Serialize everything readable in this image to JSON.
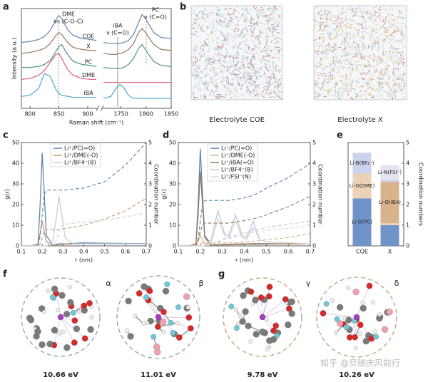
{
  "panel_labels": [
    "a",
    "b",
    "c",
    "d",
    "e",
    "f",
    "g"
  ],
  "chart_data": [
    {
      "type": "line",
      "ylabel": "Intensity (a.u.)",
      "xlabel": "Raman shift (cm⁻¹)",
      "x": [
        785,
        800,
        815,
        825,
        835,
        845,
        850,
        855,
        865,
        875,
        890,
        905,
        915,
        1715,
        1730,
        1740,
        1748,
        1755,
        1765,
        1775,
        1785,
        1792,
        1800,
        1815,
        1830,
        1850
      ],
      "xlim": [
        785,
        1850
      ],
      "xbreak": [
        915,
        1715
      ],
      "xticks": [
        800,
        850,
        900,
        1750,
        1800,
        1850
      ],
      "ylim": [
        0,
        10
      ],
      "series": [
        {
          "name": "COE",
          "color": "#6b8fb0",
          "values": [
            6.6,
            6.7,
            6.9,
            7.2,
            7.8,
            8.9,
            9.3,
            9.0,
            7.9,
            7.3,
            7.0,
            6.9,
            6.8,
            6.6,
            6.5,
            6.5,
            6.5,
            6.6,
            6.8,
            7.4,
            8.6,
            9.4,
            8.9,
            7.6,
            7.1,
            7.0
          ]
        },
        {
          "name": "X",
          "color": "#a08062",
          "values": [
            5.5,
            5.6,
            5.8,
            6.0,
            6.5,
            7.3,
            7.6,
            7.4,
            6.6,
            6.1,
            5.9,
            5.8,
            5.8,
            5.5,
            5.4,
            5.4,
            5.5,
            5.6,
            5.9,
            6.5,
            7.6,
            8.0,
            7.5,
            6.4,
            5.9,
            5.8
          ]
        },
        {
          "name": "PC",
          "color": "#5a9a8a",
          "values": [
            4.1,
            4.1,
            4.2,
            4.4,
            4.8,
            5.7,
            6.2,
            6.4,
            5.4,
            4.7,
            4.4,
            4.3,
            4.2,
            4.1,
            4.0,
            4.0,
            4.0,
            4.1,
            4.4,
            5.0,
            6.0,
            6.4,
            5.8,
            4.7,
            4.3,
            4.2
          ]
        },
        {
          "name": "DME",
          "color": "#e06a80",
          "values": [
            2.9,
            3.0,
            3.3,
            3.8,
            4.6,
            5.4,
            5.5,
            5.0,
            3.9,
            3.3,
            3.0,
            2.9,
            2.9,
            2.6,
            2.6,
            2.6,
            2.6,
            2.6,
            2.6,
            2.6,
            2.6,
            2.6,
            2.6,
            2.6,
            2.6,
            2.6
          ]
        },
        {
          "name": "iBA",
          "color": "#5ab0d0",
          "values": [
            1.2,
            1.3,
            2.0,
            3.5,
            3.2,
            1.9,
            1.5,
            1.3,
            1.2,
            1.1,
            1.1,
            1.1,
            1.1,
            1.0,
            1.2,
            2.0,
            2.4,
            2.1,
            1.3,
            1.0,
            1.0,
            1.0,
            1.0,
            1.0,
            1.0,
            1.0
          ]
        }
      ],
      "annotations": [
        "DME",
        "νs (C-O-C)",
        "iBA",
        "ν (C=O)",
        "PC",
        "ν (C=O)"
      ]
    },
    {
      "type": "line",
      "xlabel": "r (nm)",
      "ylabel": "g(r)",
      "y2label": "Coordination number",
      "x": [
        0.1,
        0.15,
        0.18,
        0.19,
        0.2,
        0.21,
        0.22,
        0.25,
        0.27,
        0.28,
        0.29,
        0.31,
        0.35,
        0.4,
        0.5,
        0.6,
        0.7
      ],
      "xlim": [
        0.1,
        0.7
      ],
      "xticks": [
        0.1,
        0.2,
        0.3,
        0.4,
        0.5,
        0.6,
        0.7
      ],
      "ylim": [
        0,
        50
      ],
      "yticks": [
        0,
        10,
        20,
        30,
        40,
        50
      ],
      "y2lim": [
        0,
        5
      ],
      "y2ticks": [
        0,
        1,
        2,
        3,
        4,
        5
      ],
      "series": [
        {
          "name": "Li⁺/PC(=O)",
          "color": "#5f86ad",
          "values": [
            0,
            0,
            1,
            20,
            45,
            25,
            5,
            0.5,
            0.8,
            1,
            1,
            1,
            1.2,
            1.5,
            1.3,
            1.2,
            1.1
          ]
        },
        {
          "name": "Li⁺/DME(-O)",
          "color": "#c79a6e",
          "values": [
            0,
            0,
            0.5,
            6,
            12,
            7,
            2,
            0.5,
            0.5,
            0.6,
            0.6,
            0.8,
            0.9,
            1,
            1,
            1,
            1
          ]
        },
        {
          "name": "Li⁺/BF4⁻(B)",
          "color": "#c6d0dc",
          "values": [
            0,
            0,
            0,
            0,
            0,
            0,
            0,
            2,
            15,
            24,
            18,
            4,
            1,
            1,
            1,
            1,
            1
          ]
        },
        {
          "color": "#5f86ad",
          "axis": "y2",
          "dash": true,
          "values": [
            0,
            0,
            0,
            0.5,
            1.5,
            2.5,
            2.7,
            2.7,
            2.7,
            2.7,
            2.7,
            2.7,
            2.75,
            2.8,
            3.1,
            3.9,
            5.0
          ]
        },
        {
          "color": "#c79a6e",
          "axis": "y2",
          "dash": true,
          "values": [
            0,
            0,
            0,
            0.1,
            0.4,
            0.7,
            0.8,
            0.8,
            0.8,
            0.8,
            0.8,
            0.85,
            0.9,
            1.0,
            1.3,
            1.7,
            2.3
          ]
        },
        {
          "color": "#c6d0dc",
          "axis": "y2",
          "dash": true,
          "values": [
            0,
            0,
            0,
            0,
            0,
            0,
            0,
            0.05,
            0.3,
            0.7,
            0.95,
            1.05,
            1.1,
            1.15,
            1.25,
            1.4,
            1.6
          ]
        }
      ]
    },
    {
      "type": "line",
      "xlabel": "r (nm)",
      "ylabel": "g(r)",
      "y2label": "Coordination number",
      "x": [
        0.1,
        0.15,
        0.18,
        0.19,
        0.2,
        0.21,
        0.22,
        0.25,
        0.28,
        0.31,
        0.33,
        0.36,
        0.39,
        0.41,
        0.44,
        0.47,
        0.5,
        0.6,
        0.7
      ],
      "xlim": [
        0.1,
        0.7
      ],
      "xticks": [
        0.1,
        0.2,
        0.3,
        0.4,
        0.5,
        0.6,
        0.7
      ],
      "ylim": [
        0,
        50
      ],
      "yticks": [
        0,
        10,
        20,
        30,
        40,
        50
      ],
      "y2lim": [
        0,
        5
      ],
      "y2ticks": [
        0,
        1,
        2,
        3,
        4,
        5
      ],
      "series": [
        {
          "name": "Li⁺/PC(=O)",
          "color": "#5f86ad",
          "values": [
            0,
            0,
            1,
            20,
            47,
            25,
            5,
            0.5,
            0.6,
            0.8,
            0.8,
            0.9,
            1,
            1,
            1.1,
            1.1,
            1.1,
            1,
            1
          ]
        },
        {
          "name": "Li⁺/DME(-O)",
          "color": "#d9b48c",
          "values": [
            0,
            0,
            0.3,
            3,
            5,
            3,
            1,
            0.3,
            0.4,
            0.5,
            0.5,
            0.6,
            0.6,
            0.7,
            0.7,
            0.8,
            0.8,
            0.9,
            1
          ]
        },
        {
          "name": "Li⁺/iBA(=O)",
          "color": "#9a7a5a",
          "values": [
            0,
            0,
            1,
            15,
            36,
            20,
            4,
            0.5,
            0.6,
            0.7,
            0.7,
            0.8,
            0.8,
            0.9,
            0.9,
            0.9,
            1,
            1,
            1
          ]
        },
        {
          "name": "Li⁺/BF4⁻(B)",
          "color": "#bcc8dc",
          "values": [
            0,
            0,
            0,
            0,
            0,
            0,
            0,
            3,
            17,
            6,
            5,
            15,
            5,
            4,
            12,
            3,
            2,
            1.5,
            1
          ]
        },
        {
          "name": "Li⁺/FSI⁻(N)",
          "color": "#d8d8d8",
          "values": [
            0,
            0,
            0,
            0,
            0,
            0,
            0,
            2,
            13,
            5,
            4,
            12,
            4,
            3,
            9,
            3,
            2,
            1.5,
            1
          ]
        },
        {
          "color": "#5f86ad",
          "axis": "y2",
          "dash": true,
          "values": [
            0,
            0,
            0,
            0.3,
            1.2,
            2,
            2.2,
            2.2,
            2.2,
            2.2,
            2.2,
            2.25,
            2.3,
            2.35,
            2.45,
            2.6,
            2.8,
            3.3,
            4.0
          ]
        },
        {
          "color": "#d9b48c",
          "axis": "y2",
          "dash": true,
          "values": [
            0,
            0,
            0,
            0,
            0.1,
            0.15,
            0.15,
            0.15,
            0.15,
            0.15,
            0.15,
            0.16,
            0.18,
            0.2,
            0.22,
            0.25,
            0.3,
            0.4,
            0.6
          ]
        },
        {
          "color": "#9a7a5a",
          "axis": "y2",
          "dash": true,
          "values": [
            0,
            0,
            0,
            0.2,
            0.7,
            1.0,
            1.1,
            1.1,
            1.1,
            1.1,
            1.1,
            1.15,
            1.2,
            1.25,
            1.3,
            1.4,
            1.5,
            1.9,
            2.4
          ]
        },
        {
          "color": "#bcc8dc",
          "axis": "y2",
          "dash": true,
          "values": [
            0,
            0,
            0,
            0,
            0,
            0,
            0,
            0.05,
            0.2,
            0.35,
            0.4,
            0.5,
            0.6,
            0.65,
            0.75,
            0.8,
            0.9,
            1.05,
            1.2
          ]
        },
        {
          "color": "#d8d8d8",
          "axis": "y2",
          "dash": true,
          "values": [
            0,
            0,
            0,
            0,
            0,
            0,
            0,
            0.05,
            0.15,
            0.3,
            0.35,
            0.45,
            0.5,
            0.55,
            0.65,
            0.7,
            0.75,
            0.85,
            1.0
          ]
        }
      ]
    },
    {
      "type": "bar",
      "stacked": true,
      "categories": [
        "COE",
        "X"
      ],
      "ylabel": "Coordination numbers",
      "ylim": [
        0,
        5
      ],
      "yticks": [
        0,
        1,
        2,
        3,
        4,
        5
      ],
      "yaxis_side": "right",
      "series": [
        {
          "name": "Li-O(PC)",
          "color": "#7093c8",
          "values": [
            2.3,
            1.0
          ]
        },
        {
          "name": "Li-O(DME)",
          "color": "#ecd2b6",
          "values": [
            1.2,
            0.1
          ]
        },
        {
          "name": "Li-O(iBA)",
          "color": "#d8b48e",
          "values": [
            0,
            2.0
          ]
        },
        {
          "name": "Li-B(BF₄⁻)",
          "color": "#cdd3ec",
          "values": [
            1.0,
            0.1
          ]
        },
        {
          "name": "Li-N(FSI⁻)",
          "color": "#e4e4ee",
          "values": [
            0,
            0.7
          ]
        }
      ]
    }
  ],
  "snapshots": {
    "labels": [
      "Electrolyte COE",
      "Electrolyte X"
    ]
  },
  "clusters": [
    {
      "symbol": "α",
      "energy": "10.66 eV"
    },
    {
      "symbol": "β",
      "energy": "11.01 eV"
    },
    {
      "symbol": "γ",
      "energy": "9.78 eV"
    },
    {
      "symbol": "δ",
      "energy": "10.26 eV"
    }
  ],
  "watermark": "知乎 @旦随庆风前行"
}
